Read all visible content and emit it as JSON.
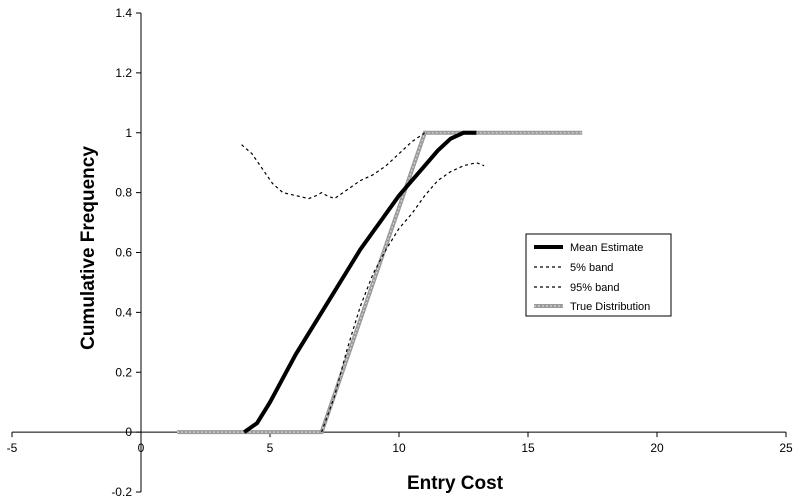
{
  "chart_data": {
    "type": "line",
    "title": "",
    "xlabel": "Entry Cost",
    "ylabel": "Cumulative Frequency",
    "xlim": [
      -5,
      25
    ],
    "ylim": [
      -0.2,
      1.4
    ],
    "xticks": [
      -5,
      0,
      5,
      10,
      15,
      20,
      25
    ],
    "xtick_labels": [
      "-5",
      "0",
      "5",
      "10",
      "15",
      "20",
      "25"
    ],
    "yticks": [
      -0.2,
      0,
      0.2,
      0.4,
      0.6,
      0.8,
      1,
      1.2,
      1.4
    ],
    "ytick_labels": [
      "-0.2",
      "0",
      "0.2",
      "0.4",
      "0.6",
      "0.8",
      "1",
      "1.2",
      "1.4"
    ],
    "grid": false,
    "legend_position": "right",
    "series": [
      {
        "name": "Mean Estimate",
        "style": "thick-solid",
        "color": "#000000",
        "x": [
          4.0,
          4.5,
          5.0,
          5.5,
          6.0,
          6.5,
          7.0,
          7.5,
          8.0,
          8.5,
          9.0,
          9.5,
          10.0,
          10.5,
          11.0,
          11.5,
          12.0,
          12.5,
          13.0
        ],
        "y": [
          0.0,
          0.03,
          0.1,
          0.18,
          0.26,
          0.33,
          0.4,
          0.47,
          0.54,
          0.61,
          0.67,
          0.73,
          0.79,
          0.84,
          0.89,
          0.94,
          0.98,
          1.0,
          1.0
        ]
      },
      {
        "name": "5% band",
        "style": "dashed",
        "color": "#000000",
        "x": [
          7.0,
          7.5,
          8.0,
          8.5,
          9.0,
          9.5,
          10.0,
          10.5,
          11.0,
          11.5,
          12.0,
          12.5,
          13.0,
          13.3
        ],
        "y": [
          0.0,
          0.12,
          0.28,
          0.42,
          0.53,
          0.61,
          0.68,
          0.73,
          0.79,
          0.84,
          0.87,
          0.89,
          0.9,
          0.89
        ]
      },
      {
        "name": "95% band",
        "style": "dashed",
        "color": "#000000",
        "x": [
          3.9,
          4.3,
          4.7,
          5.1,
          5.5,
          6.0,
          6.5,
          6.8,
          7.0,
          7.2,
          7.5,
          8.0,
          8.5,
          9.0,
          9.5,
          10.0,
          10.5,
          11.0
        ],
        "y": [
          0.96,
          0.93,
          0.88,
          0.83,
          0.8,
          0.79,
          0.78,
          0.79,
          0.8,
          0.79,
          0.78,
          0.81,
          0.84,
          0.86,
          0.89,
          0.93,
          0.97,
          1.0
        ]
      },
      {
        "name": "True Distribution",
        "style": "thick-gray",
        "color": "#9a9a9a",
        "x": [
          1.4,
          7.0,
          11.0,
          17.1
        ],
        "y": [
          0.0,
          0.0,
          1.0,
          1.0
        ]
      }
    ]
  }
}
